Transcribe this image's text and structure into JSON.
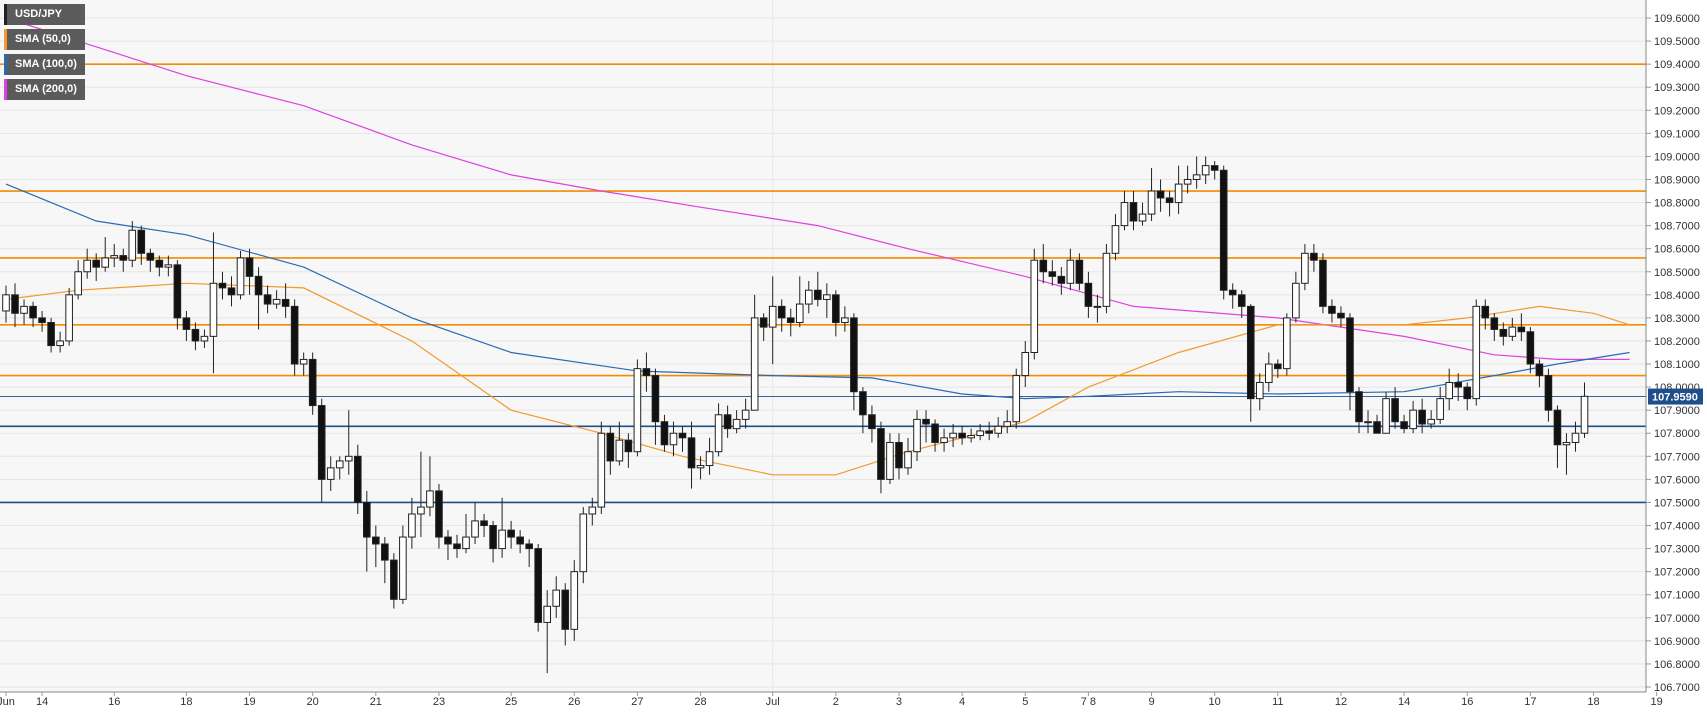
{
  "legend": [
    {
      "label": "USD/JPY",
      "color": "#222222"
    },
    {
      "label": "SMA (50,0)",
      "color": "#f29a2e"
    },
    {
      "label": "SMA (100,0)",
      "color": "#2a6ab4"
    },
    {
      "label": "SMA (200,0)",
      "color": "#e040e0"
    }
  ],
  "chart_data": {
    "type": "candlestick",
    "symbol": "USD/JPY",
    "ylim": [
      106.7,
      109.6
    ],
    "y_ticks": [
      "109.6000",
      "109.5000",
      "109.4000",
      "109.3000",
      "109.2000",
      "109.1000",
      "109.0000",
      "108.9000",
      "108.8000",
      "108.7000",
      "108.6000",
      "108.5000",
      "108.4000",
      "108.3000",
      "108.2000",
      "108.1000",
      "108.0000",
      "107.9000",
      "107.8000",
      "107.7000",
      "107.6000",
      "107.5000",
      "107.4000",
      "107.3000",
      "107.2000",
      "107.1000",
      "107.0000",
      "106.9000",
      "106.8000",
      "106.7000"
    ],
    "x_labels": [
      {
        "label": "Jun",
        "bar": 0
      },
      {
        "label": "14",
        "bar": 4
      },
      {
        "label": "16",
        "bar": 12
      },
      {
        "label": "18",
        "bar": 20
      },
      {
        "label": "19",
        "bar": 27
      },
      {
        "label": "20",
        "bar": 34
      },
      {
        "label": "21",
        "bar": 41
      },
      {
        "label": "23",
        "bar": 48
      },
      {
        "label": "25",
        "bar": 56
      },
      {
        "label": "26",
        "bar": 63
      },
      {
        "label": "27",
        "bar": 70
      },
      {
        "label": "28",
        "bar": 77
      },
      {
        "label": "Jul",
        "bar": 85
      },
      {
        "label": "2",
        "bar": 92
      },
      {
        "label": "3",
        "bar": 99
      },
      {
        "label": "4",
        "bar": 106
      },
      {
        "label": "5",
        "bar": 113
      },
      {
        "label": "7 8",
        "bar": 120
      },
      {
        "label": "9",
        "bar": 127
      },
      {
        "label": "10",
        "bar": 134
      },
      {
        "label": "11",
        "bar": 141
      },
      {
        "label": "12",
        "bar": 148
      },
      {
        "label": "14",
        "bar": 155
      },
      {
        "label": "16",
        "bar": 162
      },
      {
        "label": "17",
        "bar": 169
      },
      {
        "label": "18",
        "bar": 176
      },
      {
        "label": "19",
        "bar": 183
      }
    ],
    "candles": [
      [
        108.33,
        108.4,
        108.44,
        108.28
      ],
      [
        108.4,
        108.32,
        108.45,
        108.26
      ],
      [
        108.32,
        108.35,
        108.38,
        108.27
      ],
      [
        108.35,
        108.3,
        108.37,
        108.26
      ],
      [
        108.3,
        108.28,
        108.33,
        108.24
      ],
      [
        108.28,
        108.18,
        108.3,
        108.15
      ],
      [
        108.18,
        108.2,
        108.24,
        108.15
      ],
      [
        108.2,
        108.4,
        108.43,
        108.18
      ],
      [
        108.4,
        108.5,
        108.55,
        108.38
      ],
      [
        108.5,
        108.55,
        108.6,
        108.47
      ],
      [
        108.55,
        108.52,
        108.58,
        108.46
      ],
      [
        108.52,
        108.56,
        108.65,
        108.5
      ],
      [
        108.56,
        108.57,
        108.62,
        108.52
      ],
      [
        108.57,
        108.55,
        108.6,
        108.5
      ],
      [
        108.55,
        108.68,
        108.72,
        108.52
      ],
      [
        108.68,
        108.58,
        108.7,
        108.53
      ],
      [
        108.58,
        108.55,
        108.6,
        108.5
      ],
      [
        108.55,
        108.52,
        108.57,
        108.48
      ],
      [
        108.52,
        108.53,
        108.57,
        108.48
      ],
      [
        108.53,
        108.3,
        108.55,
        108.25
      ],
      [
        108.3,
        108.25,
        108.33,
        108.2
      ],
      [
        108.25,
        108.2,
        108.28,
        108.16
      ],
      [
        108.2,
        108.22,
        108.25,
        108.17
      ],
      [
        108.22,
        108.45,
        108.67,
        108.06
      ],
      [
        108.45,
        108.43,
        108.5,
        108.38
      ],
      [
        108.43,
        108.4,
        108.48,
        108.35
      ],
      [
        108.4,
        108.56,
        108.59,
        108.38
      ],
      [
        108.56,
        108.48,
        108.6,
        108.4
      ],
      [
        108.48,
        108.4,
        108.52,
        108.25
      ],
      [
        108.4,
        108.36,
        108.44,
        108.32
      ],
      [
        108.36,
        108.38,
        108.42,
        108.34
      ],
      [
        108.38,
        108.35,
        108.45,
        108.3
      ],
      [
        108.35,
        108.1,
        108.38,
        108.05
      ],
      [
        108.1,
        108.12,
        108.15,
        108.05
      ],
      [
        108.12,
        107.92,
        108.15,
        107.88
      ],
      [
        107.92,
        107.6,
        107.95,
        107.5
      ],
      [
        107.6,
        107.65,
        107.7,
        107.55
      ],
      [
        107.65,
        107.68,
        107.7,
        107.6
      ],
      [
        107.68,
        107.7,
        107.9,
        107.62
      ],
      [
        107.7,
        107.5,
        107.75,
        107.45
      ],
      [
        107.5,
        107.35,
        107.55,
        107.2
      ],
      [
        107.35,
        107.32,
        107.4,
        107.22
      ],
      [
        107.32,
        107.25,
        107.35,
        107.15
      ],
      [
        107.25,
        107.08,
        107.28,
        107.04
      ],
      [
        107.08,
        107.35,
        107.4,
        107.06
      ],
      [
        107.35,
        107.45,
        107.52,
        107.3
      ],
      [
        107.45,
        107.48,
        107.72,
        107.35
      ],
      [
        107.48,
        107.55,
        107.7,
        107.44
      ],
      [
        107.55,
        107.35,
        107.58,
        107.3
      ],
      [
        107.35,
        107.32,
        107.38,
        107.25
      ],
      [
        107.32,
        107.3,
        107.36,
        107.26
      ],
      [
        107.3,
        107.35,
        107.45,
        107.28
      ],
      [
        107.35,
        107.42,
        107.5,
        107.32
      ],
      [
        107.42,
        107.4,
        107.45,
        107.35
      ],
      [
        107.4,
        107.3,
        107.42,
        107.24
      ],
      [
        107.3,
        107.38,
        107.52,
        107.26
      ],
      [
        107.38,
        107.35,
        107.42,
        107.3
      ],
      [
        107.35,
        107.32,
        107.38,
        107.28
      ],
      [
        107.32,
        107.3,
        107.34,
        107.22
      ],
      [
        107.3,
        106.98,
        107.32,
        106.94
      ],
      [
        106.98,
        107.05,
        107.12,
        106.76
      ],
      [
        107.05,
        107.12,
        107.18,
        107.0
      ],
      [
        107.12,
        106.95,
        107.15,
        106.88
      ],
      [
        106.95,
        107.2,
        107.25,
        106.9
      ],
      [
        107.2,
        107.45,
        107.48,
        107.15
      ],
      [
        107.45,
        107.48,
        107.52,
        107.4
      ],
      [
        107.48,
        107.8,
        107.85,
        107.45
      ],
      [
        107.8,
        107.68,
        107.83,
        107.62
      ],
      [
        107.68,
        107.77,
        107.85,
        107.66
      ],
      [
        107.77,
        107.72,
        107.8,
        107.65
      ],
      [
        107.72,
        108.08,
        108.12,
        107.7
      ],
      [
        108.08,
        108.05,
        108.15,
        107.98
      ],
      [
        108.05,
        107.85,
        108.08,
        107.75
      ],
      [
        107.85,
        107.75,
        107.88,
        107.72
      ],
      [
        107.75,
        107.8,
        107.85,
        107.7
      ],
      [
        107.8,
        107.78,
        107.83,
        107.72
      ],
      [
        107.78,
        107.65,
        107.85,
        107.56
      ],
      [
        107.65,
        107.66,
        107.7,
        107.6
      ],
      [
        107.66,
        107.72,
        107.78,
        107.62
      ],
      [
        107.72,
        107.88,
        107.93,
        107.7
      ],
      [
        107.88,
        107.82,
        107.92,
        107.78
      ],
      [
        107.82,
        107.86,
        107.9,
        107.8
      ],
      [
        107.86,
        107.9,
        107.95,
        107.82
      ],
      [
        107.9,
        108.3,
        108.4,
        108.15
      ],
      [
        108.3,
        108.26,
        108.32,
        108.2
      ],
      [
        108.26,
        108.35,
        108.48,
        108.1
      ],
      [
        108.35,
        108.3,
        108.38,
        108.24
      ],
      [
        108.3,
        108.28,
        108.34,
        108.22
      ],
      [
        108.28,
        108.36,
        108.48,
        108.26
      ],
      [
        108.36,
        108.42,
        108.46,
        108.32
      ],
      [
        108.42,
        108.38,
        108.5,
        108.35
      ],
      [
        108.38,
        108.4,
        108.45,
        108.3
      ],
      [
        108.4,
        108.28,
        108.42,
        108.22
      ],
      [
        108.28,
        108.3,
        108.35,
        108.24
      ],
      [
        108.3,
        107.98,
        108.32,
        107.9
      ],
      [
        107.98,
        107.88,
        108.0,
        107.8
      ],
      [
        107.88,
        107.82,
        107.92,
        107.76
      ],
      [
        107.82,
        107.6,
        107.85,
        107.54
      ],
      [
        107.6,
        107.76,
        107.8,
        107.58
      ],
      [
        107.76,
        107.65,
        107.8,
        107.6
      ],
      [
        107.65,
        107.72,
        107.78,
        107.62
      ],
      [
        107.72,
        107.86,
        107.9,
        107.68
      ],
      [
        107.86,
        107.84,
        107.9,
        107.76
      ],
      [
        107.84,
        107.76,
        107.86,
        107.72
      ],
      [
        107.76,
        107.78,
        107.82,
        107.72
      ],
      [
        107.78,
        107.8,
        107.84,
        107.74
      ],
      [
        107.8,
        107.78,
        107.83,
        107.75
      ],
      [
        107.78,
        107.79,
        107.82,
        107.76
      ],
      [
        107.79,
        107.81,
        107.84,
        107.77
      ],
      [
        107.81,
        107.8,
        107.85,
        107.77
      ],
      [
        107.8,
        107.83,
        107.87,
        107.78
      ],
      [
        107.83,
        107.85,
        107.9,
        107.8
      ],
      [
        107.85,
        108.05,
        108.08,
        107.82
      ],
      [
        108.05,
        108.15,
        108.2,
        108.0
      ],
      [
        108.15,
        108.55,
        108.6,
        108.12
      ],
      [
        108.55,
        108.5,
        108.62,
        108.45
      ],
      [
        108.5,
        108.48,
        108.55,
        108.44
      ],
      [
        108.48,
        108.45,
        108.52,
        108.4
      ],
      [
        108.45,
        108.55,
        108.6,
        108.42
      ],
      [
        108.55,
        108.45,
        108.58,
        108.42
      ],
      [
        108.45,
        108.35,
        108.5,
        108.3
      ],
      [
        108.35,
        108.35,
        108.4,
        108.28
      ],
      [
        108.35,
        108.58,
        108.62,
        108.32
      ],
      [
        108.58,
        108.7,
        108.75,
        108.55
      ],
      [
        108.7,
        108.8,
        108.85,
        108.68
      ],
      [
        108.8,
        108.72,
        108.85,
        108.68
      ],
      [
        108.72,
        108.75,
        108.8,
        108.7
      ],
      [
        108.75,
        108.85,
        108.95,
        108.72
      ],
      [
        108.85,
        108.82,
        108.9,
        108.76
      ],
      [
        108.82,
        108.8,
        108.85,
        108.74
      ],
      [
        108.8,
        108.88,
        108.96,
        108.75
      ],
      [
        108.88,
        108.9,
        108.96,
        108.84
      ],
      [
        108.9,
        108.92,
        109.0,
        108.86
      ],
      [
        108.92,
        108.96,
        109.0,
        108.88
      ],
      [
        108.96,
        108.94,
        108.98,
        108.9
      ],
      [
        108.94,
        108.42,
        108.96,
        108.38
      ],
      [
        108.42,
        108.4,
        108.45,
        108.34
      ],
      [
        108.4,
        108.35,
        108.42,
        108.3
      ],
      [
        108.35,
        107.95,
        108.36,
        107.85
      ],
      [
        107.95,
        108.02,
        108.06,
        107.9
      ],
      [
        108.02,
        108.1,
        108.15,
        107.98
      ],
      [
        108.1,
        108.08,
        108.12,
        108.04
      ],
      [
        108.08,
        108.3,
        108.32,
        108.05
      ],
      [
        108.3,
        108.45,
        108.5,
        108.28
      ],
      [
        108.45,
        108.58,
        108.62,
        108.42
      ],
      [
        108.58,
        108.55,
        108.62,
        108.5
      ],
      [
        108.55,
        108.35,
        108.58,
        108.32
      ],
      [
        108.35,
        108.32,
        108.38,
        108.28
      ],
      [
        108.32,
        108.3,
        108.35,
        108.26
      ],
      [
        108.3,
        107.98,
        108.32,
        107.9
      ],
      [
        107.98,
        107.85,
        108.0,
        107.8
      ],
      [
        107.85,
        107.85,
        107.9,
        107.8
      ],
      [
        107.85,
        107.8,
        107.88,
        107.8
      ],
      [
        107.8,
        107.95,
        107.98,
        107.82
      ],
      [
        107.95,
        107.85,
        108.0,
        107.82
      ],
      [
        107.85,
        107.82,
        107.88,
        107.8
      ],
      [
        107.82,
        107.9,
        107.94,
        107.8
      ],
      [
        107.9,
        107.84,
        107.95,
        107.8
      ],
      [
        107.84,
        107.86,
        107.9,
        107.82
      ],
      [
        107.86,
        107.95,
        108.0,
        107.84
      ],
      [
        107.95,
        108.02,
        108.08,
        107.9
      ],
      [
        108.02,
        108.0,
        108.06,
        107.94
      ],
      [
        108.0,
        107.95,
        108.02,
        107.9
      ],
      [
        107.95,
        108.35,
        108.38,
        107.92
      ],
      [
        108.35,
        108.3,
        108.38,
        108.25
      ],
      [
        108.3,
        108.25,
        108.32,
        108.2
      ],
      [
        108.25,
        108.22,
        108.28,
        108.18
      ],
      [
        108.22,
        108.26,
        108.3,
        108.2
      ],
      [
        108.26,
        108.24,
        108.32,
        108.2
      ],
      [
        108.24,
        108.1,
        108.26,
        108.06
      ],
      [
        108.1,
        108.05,
        108.12,
        108.0
      ],
      [
        108.05,
        107.9,
        108.08,
        107.85
      ],
      [
        107.9,
        107.75,
        107.92,
        107.65
      ],
      [
        107.75,
        107.76,
        107.8,
        107.62
      ],
      [
        107.76,
        107.8,
        107.85,
        107.72
      ],
      [
        107.8,
        107.96,
        108.02,
        107.78
      ]
    ],
    "sma50": [
      [
        0,
        108.38
      ],
      [
        8,
        108.42
      ],
      [
        20,
        108.45
      ],
      [
        33,
        108.43
      ],
      [
        45,
        108.2
      ],
      [
        56,
        107.9
      ],
      [
        66,
        107.8
      ],
      [
        75,
        107.7
      ],
      [
        85,
        107.62
      ],
      [
        92,
        107.62
      ],
      [
        100,
        107.72
      ],
      [
        113,
        107.85
      ],
      [
        120,
        108.0
      ],
      [
        130,
        108.15
      ],
      [
        141,
        108.27
      ],
      [
        155,
        108.27
      ],
      [
        162,
        108.3
      ],
      [
        170,
        108.35
      ],
      [
        176,
        108.32
      ],
      [
        180,
        108.27
      ]
    ],
    "sma100": [
      [
        0,
        108.88
      ],
      [
        10,
        108.72
      ],
      [
        20,
        108.66
      ],
      [
        33,
        108.52
      ],
      [
        45,
        108.3
      ],
      [
        56,
        108.15
      ],
      [
        70,
        108.07
      ],
      [
        85,
        108.05
      ],
      [
        96,
        108.04
      ],
      [
        106,
        107.97
      ],
      [
        113,
        107.95
      ],
      [
        120,
        107.96
      ],
      [
        130,
        107.98
      ],
      [
        141,
        107.97
      ],
      [
        155,
        107.98
      ],
      [
        165,
        108.05
      ],
      [
        172,
        108.1
      ],
      [
        180,
        108.15
      ]
    ],
    "sma200": [
      [
        0,
        109.6
      ],
      [
        8,
        109.5
      ],
      [
        20,
        109.35
      ],
      [
        33,
        109.22
      ],
      [
        45,
        109.05
      ],
      [
        56,
        108.92
      ],
      [
        66,
        108.85
      ],
      [
        77,
        108.78
      ],
      [
        90,
        108.7
      ],
      [
        100,
        108.6
      ],
      [
        113,
        108.48
      ],
      [
        125,
        108.35
      ],
      [
        141,
        108.3
      ],
      [
        155,
        108.22
      ],
      [
        165,
        108.14
      ],
      [
        172,
        108.12
      ],
      [
        180,
        108.12
      ]
    ],
    "horizontal_lines": [
      {
        "value": 109.4,
        "color": "#f28c00"
      },
      {
        "value": 108.85,
        "color": "#f28c00"
      },
      {
        "value": 108.56,
        "color": "#f28c00"
      },
      {
        "value": 108.27,
        "color": "#f28c00"
      },
      {
        "value": 108.05,
        "color": "#f28c00"
      },
      {
        "value": 107.83,
        "color": "#1f4e8c"
      },
      {
        "value": 107.5,
        "color": "#1f4e8c"
      }
    ],
    "current_price": {
      "value": 107.959,
      "label": "107.9590"
    }
  }
}
